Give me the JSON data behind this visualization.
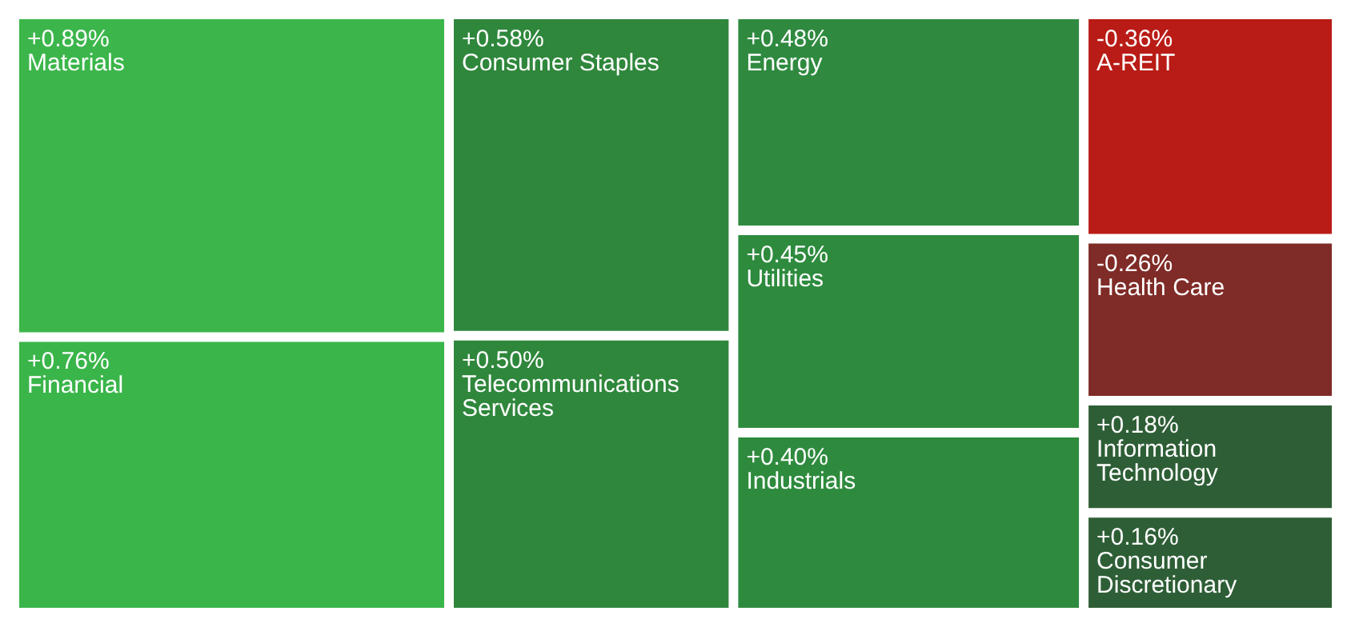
{
  "chart_data": {
    "type": "other",
    "categories": [
      "Materials",
      "Financial",
      "Consumer Staples",
      "Telecommunications Services",
      "Energy",
      "Utilities",
      "Industrials",
      "A-REIT",
      "Health Care",
      "Information Technology",
      "Consumer Discretionary"
    ],
    "values": [
      0.89,
      0.76,
      0.58,
      0.5,
      0.48,
      0.45,
      0.4,
      -0.36,
      -0.26,
      0.18,
      0.16
    ],
    "value_labels": [
      "+0.89%",
      "+0.76%",
      "+0.58%",
      "+0.50%",
      "+0.48%",
      "+0.45%",
      "+0.40%",
      "-0.36%",
      "-0.26%",
      "+0.18%",
      "+0.16%"
    ],
    "colors": [
      "#3cb64b",
      "#3ab54a",
      "#2f873c",
      "#2f873c",
      "#2f8a3f",
      "#2e8b3e",
      "#2e8b3e",
      "#b91c16",
      "#7f2b27",
      "#2e5e36",
      "#2e5e36"
    ]
  }
}
